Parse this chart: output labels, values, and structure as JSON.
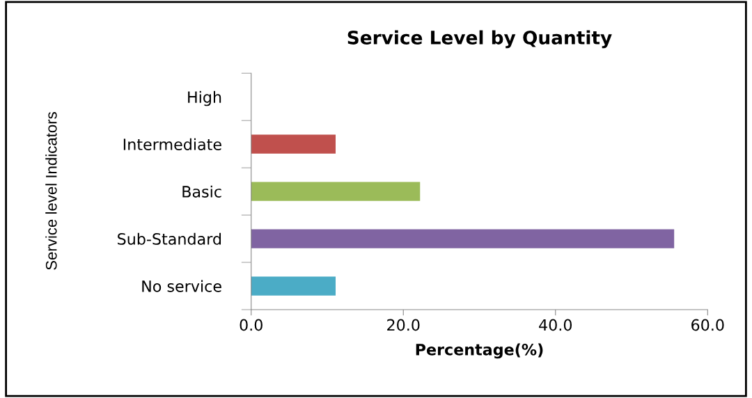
{
  "chart_data": {
    "type": "bar",
    "orientation": "horizontal",
    "title": "Service Level by Quantity",
    "xlabel": "Percentage(%)",
    "ylabel": "Service level Indicators",
    "categories": [
      "High",
      "Intermediate",
      "Basic",
      "Sub-Standard",
      "No service"
    ],
    "values": [
      0,
      11.1,
      22.2,
      55.6,
      11.1
    ],
    "colors": [
      "#4f81bd",
      "#c0504d",
      "#9bbb59",
      "#8064a2",
      "#4bacc6"
    ],
    "xlim": [
      0,
      60
    ],
    "xticks": [
      {
        "value": 0,
        "label": "0.0"
      },
      {
        "value": 20,
        "label": "20.0"
      },
      {
        "value": 40,
        "label": "40.0"
      },
      {
        "value": 60,
        "label": "60.0"
      }
    ],
    "grid": false,
    "legend": false
  }
}
